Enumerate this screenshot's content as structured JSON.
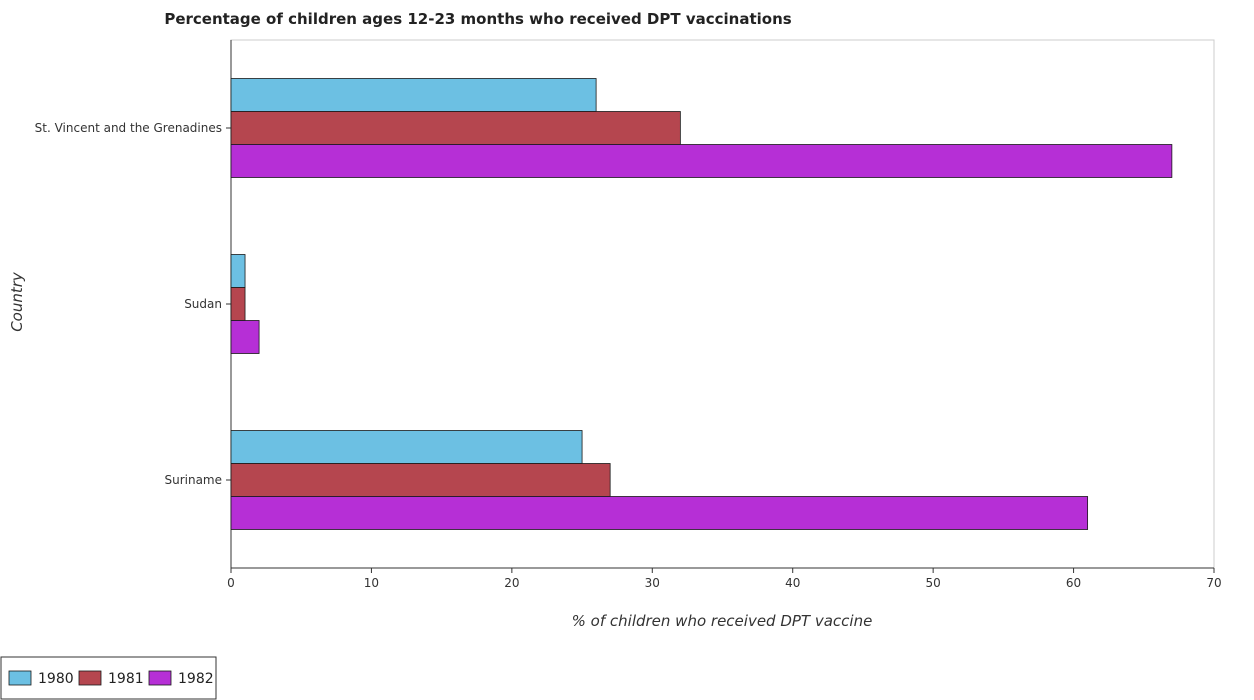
{
  "chart_data": {
    "type": "bar",
    "orientation": "horizontal",
    "title": "Percentage of children ages 12-23 months who received DPT vaccinations",
    "xlabel": "% of children who received DPT vaccine",
    "ylabel": "Country",
    "categories": [
      "St. Vincent and the Grenadines",
      "Sudan",
      "Suriname"
    ],
    "series": [
      {
        "name": "1980",
        "color": "#6cc0e3",
        "values": [
          26,
          1,
          25
        ]
      },
      {
        "name": "1981",
        "color": "#b5464f",
        "values": [
          32,
          1,
          27
        ]
      },
      {
        "name": "1982",
        "color": "#b62fd6",
        "values": [
          67,
          2,
          61
        ]
      }
    ],
    "xlim": [
      0,
      70
    ],
    "xticks": [
      0,
      10,
      20,
      30,
      40,
      50,
      60,
      70
    ],
    "grid": false,
    "legend_position": "bottom-left"
  }
}
